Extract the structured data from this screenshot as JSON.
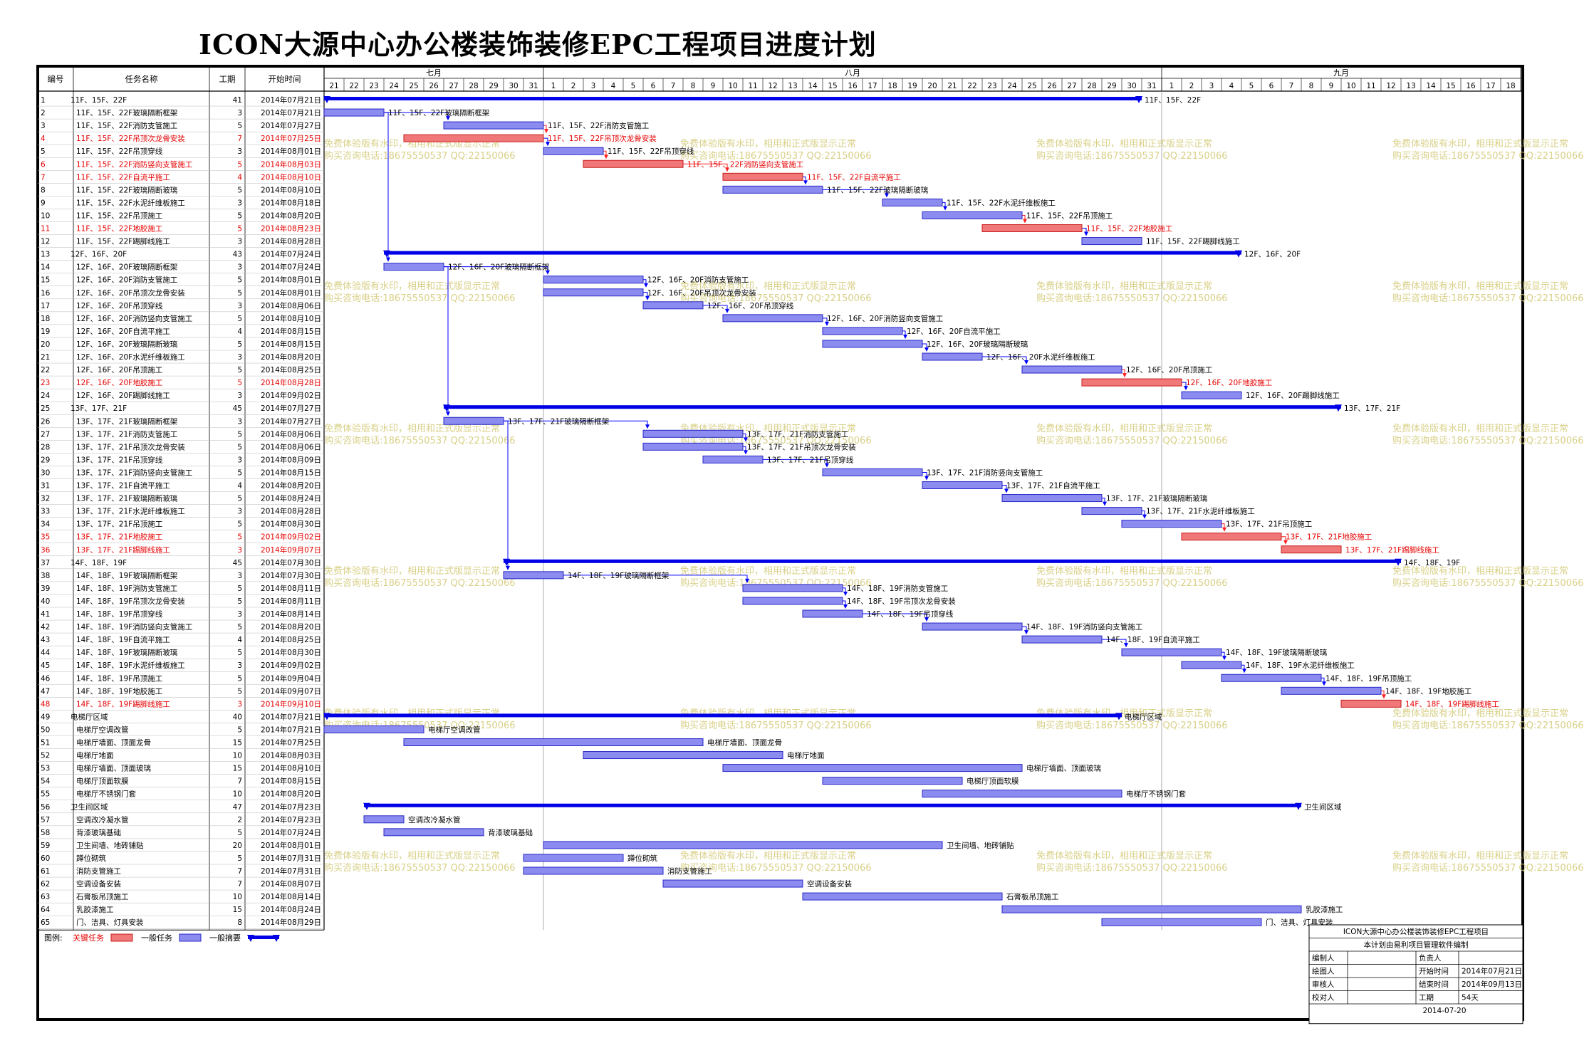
{
  "title": "ICON大源中心办公楼装饰装修EPC工程项目进度计划",
  "chart_data": {
    "type": "gantt",
    "columns": [
      "编号",
      "任务名称",
      "工期",
      "开始时间"
    ],
    "timeline": {
      "months": [
        {
          "label": "七月",
          "days": [
            "21",
            "22",
            "23",
            "24",
            "25",
            "26",
            "27",
            "28",
            "29",
            "30",
            "31"
          ]
        },
        {
          "label": "八月",
          "days": [
            "1",
            "2",
            "3",
            "4",
            "5",
            "6",
            "7",
            "8",
            "9",
            "10",
            "11",
            "12",
            "13",
            "14",
            "15",
            "16",
            "17",
            "18",
            "19",
            "20",
            "21",
            "22",
            "23",
            "24",
            "25",
            "26",
            "27",
            "28",
            "29",
            "30",
            "31"
          ]
        },
        {
          "label": "九月",
          "days": [
            "1",
            "2",
            "3",
            "4",
            "5",
            "6",
            "7",
            "8",
            "9",
            "10",
            "11",
            "12",
            "13",
            "14",
            "15",
            "16",
            "17",
            "18"
          ]
        }
      ]
    },
    "tasks": [
      {
        "id": "1",
        "name": "11F、15F、22F",
        "duration": 41,
        "start": "2014年07月21日",
        "type": "summary",
        "bar_label": "11F、15F、22F"
      },
      {
        "id": "2",
        "name": "11F、15F、22F玻璃隔断框架",
        "duration": 3,
        "start": "2014年07月21日",
        "type": "normal",
        "bar_label": "11F、15F、22F玻璃隔断框架"
      },
      {
        "id": "3",
        "name": "11F、15F、22F消防支管施工",
        "duration": 5,
        "start": "2014年07月27日",
        "type": "normal",
        "bar_label": "11F、15F、22F消防支管施工"
      },
      {
        "id": "4",
        "name": "11F、15F、22F吊顶次龙骨安装",
        "duration": 7,
        "start": "2014年07月25日",
        "type": "critical",
        "bar_label": "11F、15F、22F吊顶次龙骨安装"
      },
      {
        "id": "5",
        "name": "11F、15F、22F吊顶穿线",
        "duration": 3,
        "start": "2014年08月01日",
        "type": "normal",
        "bar_label": "11F、15F、22F吊顶穿线"
      },
      {
        "id": "6",
        "name": "11F、15F、22F消防竖向支管施工",
        "duration": 5,
        "start": "2014年08月03日",
        "type": "critical",
        "bar_label": "11F、15F、22F消防竖向支管施工"
      },
      {
        "id": "7",
        "name": "11F、15F、22F自流平施工",
        "duration": 4,
        "start": "2014年08月10日",
        "type": "critical",
        "bar_label": "11F、15F、22F自流平施工"
      },
      {
        "id": "8",
        "name": "11F、15F、22F玻璃隔断玻璃",
        "duration": 5,
        "start": "2014年08月10日",
        "type": "normal",
        "bar_label": "11F、15F、22F玻璃隔断玻璃"
      },
      {
        "id": "9",
        "name": "11F、15F、22F水泥纤维板施工",
        "duration": 3,
        "start": "2014年08月18日",
        "type": "normal",
        "bar_label": "11F、15F、22F水泥纤维板施工"
      },
      {
        "id": "10",
        "name": "11F、15F、22F吊顶施工",
        "duration": 5,
        "start": "2014年08月20日",
        "type": "normal",
        "bar_label": "11F、15F、22F吊顶施工"
      },
      {
        "id": "11",
        "name": "11F、15F、22F地胶施工",
        "duration": 5,
        "start": "2014年08月23日",
        "type": "critical",
        "bar_label": "11F、15F、22F地胶施工"
      },
      {
        "id": "12",
        "name": "11F、15F、22F踢脚线施工",
        "duration": 3,
        "start": "2014年08月28日",
        "type": "normal",
        "bar_label": "11F、15F、22F踢脚线施工"
      },
      {
        "id": "13",
        "name": "12F、16F、20F",
        "duration": 43,
        "start": "2014年07月24日",
        "type": "summary",
        "bar_label": "12F、16F、20F"
      },
      {
        "id": "14",
        "name": "12F、16F、20F玻璃隔断框架",
        "duration": 3,
        "start": "2014年07月24日",
        "type": "normal",
        "bar_label": "12F、16F、20F玻璃隔断框架"
      },
      {
        "id": "15",
        "name": "12F、16F、20F消防支管施工",
        "duration": 5,
        "start": "2014年08月01日",
        "type": "normal",
        "bar_label": "12F、16F、20F消防支管施工"
      },
      {
        "id": "16",
        "name": "12F、16F、20F吊顶次龙骨安装",
        "duration": 5,
        "start": "2014年08月01日",
        "type": "normal",
        "bar_label": "12F、16F、20F吊顶次龙骨安装"
      },
      {
        "id": "17",
        "name": "12F、16F、20F吊顶穿线",
        "duration": 3,
        "start": "2014年08月06日",
        "type": "normal",
        "bar_label": "12F、16F、20F吊顶穿线"
      },
      {
        "id": "18",
        "name": "12F、16F、20F消防竖向支管施工",
        "duration": 5,
        "start": "2014年08月10日",
        "type": "normal",
        "bar_label": "12F、16F、20F消防竖向支管施工"
      },
      {
        "id": "19",
        "name": "12F、16F、20F自流平施工",
        "duration": 4,
        "start": "2014年08月15日",
        "type": "normal",
        "bar_label": "12F、16F、20F自流平施工"
      },
      {
        "id": "20",
        "name": "12F、16F、20F玻璃隔断玻璃",
        "duration": 5,
        "start": "2014年08月15日",
        "type": "normal",
        "bar_label": "12F、16F、20F玻璃隔断玻璃"
      },
      {
        "id": "21",
        "name": "12F、16F、20F水泥纤维板施工",
        "duration": 3,
        "start": "2014年08月20日",
        "type": "normal",
        "bar_label": "12F、16F、20F水泥纤维板施工"
      },
      {
        "id": "22",
        "name": "12F、16F、20F吊顶施工",
        "duration": 5,
        "start": "2014年08月25日",
        "type": "normal",
        "bar_label": "12F、16F、20F吊顶施工"
      },
      {
        "id": "23",
        "name": "12F、16F、20F地胶施工",
        "duration": 5,
        "start": "2014年08月28日",
        "type": "critical",
        "bar_label": "12F、16F、20F地胶施工"
      },
      {
        "id": "24",
        "name": "12F、16F、20F踢脚线施工",
        "duration": 3,
        "start": "2014年09月02日",
        "type": "normal",
        "bar_label": "12F、16F、20F踢脚线施工"
      },
      {
        "id": "25",
        "name": "13F、17F、21F",
        "duration": 45,
        "start": "2014年07月27日",
        "type": "summary",
        "bar_label": "13F、17F、21F"
      },
      {
        "id": "26",
        "name": "13F、17F、21F玻璃隔断框架",
        "duration": 3,
        "start": "2014年07月27日",
        "type": "normal",
        "bar_label": "13F、17F、21F玻璃隔断框架"
      },
      {
        "id": "27",
        "name": "13F、17F、21F消防支管施工",
        "duration": 5,
        "start": "2014年08月06日",
        "type": "normal",
        "bar_label": "13F、17F、21F消防支管施工"
      },
      {
        "id": "28",
        "name": "13F、17F、21F吊顶次龙骨安装",
        "duration": 5,
        "start": "2014年08月06日",
        "type": "normal",
        "bar_label": "13F、17F、21F吊顶次龙骨安装"
      },
      {
        "id": "29",
        "name": "13F、17F、21F吊顶穿线",
        "duration": 3,
        "start": "2014年08月09日",
        "type": "normal",
        "bar_label": "13F、17F、21F吊顶穿线"
      },
      {
        "id": "30",
        "name": "13F、17F、21F消防竖向支管施工",
        "duration": 5,
        "start": "2014年08月15日",
        "type": "normal",
        "bar_label": "13F、17F、21F消防竖向支管施工"
      },
      {
        "id": "31",
        "name": "13F、17F、21F自流平施工",
        "duration": 4,
        "start": "2014年08月20日",
        "type": "normal",
        "bar_label": "13F、17F、21F自流平施工"
      },
      {
        "id": "32",
        "name": "13F、17F、21F玻璃隔断玻璃",
        "duration": 5,
        "start": "2014年08月24日",
        "type": "normal",
        "bar_label": "13F、17F、21F玻璃隔断玻璃"
      },
      {
        "id": "33",
        "name": "13F、17F、21F水泥纤维板施工",
        "duration": 3,
        "start": "2014年08月28日",
        "type": "normal",
        "bar_label": "13F、17F、21F水泥纤维板施工"
      },
      {
        "id": "34",
        "name": "13F、17F、21F吊顶施工",
        "duration": 5,
        "start": "2014年08月30日",
        "type": "normal",
        "bar_label": "13F、17F、21F吊顶施工"
      },
      {
        "id": "35",
        "name": "13F、17F、21F地胶施工",
        "duration": 5,
        "start": "2014年09月02日",
        "type": "critical",
        "bar_label": "13F、17F、21F地胶施工"
      },
      {
        "id": "36",
        "name": "13F、17F、21F踢脚线施工",
        "duration": 3,
        "start": "2014年09月07日",
        "type": "critical",
        "bar_label": "13F、17F、21F踢脚线施工"
      },
      {
        "id": "37",
        "name": "14F、18F、19F",
        "duration": 45,
        "start": "2014年07月30日",
        "type": "summary",
        "bar_label": "14F、18F、19F"
      },
      {
        "id": "38",
        "name": "14F、18F、19F玻璃隔断框架",
        "duration": 3,
        "start": "2014年07月30日",
        "type": "normal",
        "bar_label": "14F、18F、19F玻璃隔断框架"
      },
      {
        "id": "39",
        "name": "14F、18F、19F消防支管施工",
        "duration": 5,
        "start": "2014年08月11日",
        "type": "normal",
        "bar_label": "14F、18F、19F消防支管施工"
      },
      {
        "id": "40",
        "name": "14F、18F、19F吊顶次龙骨安装",
        "duration": 5,
        "start": "2014年08月11日",
        "type": "normal",
        "bar_label": "14F、18F、19F吊顶次龙骨安装"
      },
      {
        "id": "41",
        "name": "14F、18F、19F吊顶穿线",
        "duration": 3,
        "start": "2014年08月14日",
        "type": "normal",
        "bar_label": "14F、18F、19F吊顶穿线"
      },
      {
        "id": "42",
        "name": "14F、18F、19F消防竖向支管施工",
        "duration": 5,
        "start": "2014年08月20日",
        "type": "normal",
        "bar_label": "14F、18F、19F消防竖向支管施工"
      },
      {
        "id": "43",
        "name": "14F、18F、19F自流平施工",
        "duration": 4,
        "start": "2014年08月25日",
        "type": "normal",
        "bar_label": "14F、18F、19F自流平施工"
      },
      {
        "id": "44",
        "name": "14F、18F、19F玻璃隔断玻璃",
        "duration": 5,
        "start": "2014年08月30日",
        "type": "normal",
        "bar_label": "14F、18F、19F玻璃隔断玻璃"
      },
      {
        "id": "45",
        "name": "14F、18F、19F水泥纤维板施工",
        "duration": 3,
        "start": "2014年09月02日",
        "type": "normal",
        "bar_label": "14F、18F、19F水泥纤维板施工"
      },
      {
        "id": "46",
        "name": "14F、18F、19F吊顶施工",
        "duration": 5,
        "start": "2014年09月04日",
        "type": "normal",
        "bar_label": "14F、18F、19F吊顶施工"
      },
      {
        "id": "47",
        "name": "14F、18F、19F地胶施工",
        "duration": 5,
        "start": "2014年09月07日",
        "type": "normal",
        "bar_label": "14F、18F、19F地胶施工"
      },
      {
        "id": "48",
        "name": "14F、18F、19F踢脚线施工",
        "duration": 3,
        "start": "2014年09月10日",
        "type": "critical",
        "bar_label": "14F、18F、19F踢脚线施工"
      },
      {
        "id": "49",
        "name": "电梯厅区域",
        "duration": 40,
        "start": "2014年07月21日",
        "type": "summary",
        "bar_label": "电梯厅区域"
      },
      {
        "id": "50",
        "name": "电梯厅空调改管",
        "duration": 5,
        "start": "2014年07月21日",
        "type": "normal",
        "bar_label": "电梯厅空调改管"
      },
      {
        "id": "51",
        "name": "电梯厅墙面、顶面龙骨",
        "duration": 15,
        "start": "2014年07月25日",
        "type": "normal",
        "bar_label": "电梯厅墙面、顶面龙骨"
      },
      {
        "id": "52",
        "name": "电梯厅地面",
        "duration": 10,
        "start": "2014年08月03日",
        "type": "normal",
        "bar_label": "电梯厅地面"
      },
      {
        "id": "53",
        "name": "电梯厅墙面、顶面玻璃",
        "duration": 15,
        "start": "2014年08月10日",
        "type": "normal",
        "bar_label": "电梯厅墙面、顶面玻璃"
      },
      {
        "id": "54",
        "name": "电梯厅顶面软膜",
        "duration": 7,
        "start": "2014年08月15日",
        "type": "normal",
        "bar_label": "电梯厅顶面软膜"
      },
      {
        "id": "55",
        "name": "电梯厅不锈钢门套",
        "duration": 10,
        "start": "2014年08月20日",
        "type": "normal",
        "bar_label": "电梯厅不锈钢门套"
      },
      {
        "id": "56",
        "name": "卫生间区域",
        "duration": 47,
        "start": "2014年07月23日",
        "type": "summary",
        "bar_label": "卫生间区域"
      },
      {
        "id": "57",
        "name": "空调改冷凝水管",
        "duration": 2,
        "start": "2014年07月23日",
        "type": "normal",
        "bar_label": "空调改冷凝水管"
      },
      {
        "id": "58",
        "name": "背漆玻璃基础",
        "duration": 5,
        "start": "2014年07月24日",
        "type": "normal",
        "bar_label": "背漆玻璃基础"
      },
      {
        "id": "59",
        "name": "卫生间墙、地砖铺贴",
        "duration": 20,
        "start": "2014年08月01日",
        "type": "normal",
        "bar_label": "卫生间墙、地砖铺贴"
      },
      {
        "id": "60",
        "name": "蹲位砌筑",
        "duration": 5,
        "start": "2014年07月31日",
        "type": "normal",
        "bar_label": "蹲位砌筑"
      },
      {
        "id": "61",
        "name": "消防支管施工",
        "duration": 7,
        "start": "2014年07月31日",
        "type": "normal",
        "bar_label": "消防支管施工"
      },
      {
        "id": "62",
        "name": "空调设备安装",
        "duration": 7,
        "start": "2014年08月07日",
        "type": "normal",
        "bar_label": "空调设备安装"
      },
      {
        "id": "63",
        "name": "石膏板吊顶施工",
        "duration": 10,
        "start": "2014年08月14日",
        "type": "normal",
        "bar_label": "石膏板吊顶施工"
      },
      {
        "id": "64",
        "name": "乳胶漆施工",
        "duration": 15,
        "start": "2014年08月24日",
        "type": "normal",
        "bar_label": "乳胶漆施工"
      },
      {
        "id": "65",
        "name": "门、洁具、灯具安装",
        "duration": 8,
        "start": "2014年08月29日",
        "type": "normal",
        "bar_label": "门、洁具、灯具安装"
      }
    ],
    "legend": {
      "label": "图例:",
      "items": [
        {
          "label": "关键任务",
          "kind": "critical"
        },
        {
          "label": "一般任务",
          "kind": "normal"
        },
        {
          "label": "一般摘要",
          "kind": "summary"
        }
      ]
    },
    "colors": {
      "normal": "#8c8cf0",
      "normal_border": "#2828c8",
      "critical": "#f07878",
      "critical_border": "#c81e1e",
      "summary": "#0000e6",
      "critical_text": "#e60000",
      "link": "#0000ff",
      "watermark": "#d2c873"
    },
    "watermark": {
      "line1": "免费体验版有水印，相用和正式版显示正常",
      "line2": "购买咨询电话:18675550537 QQ:22150066"
    }
  },
  "info_box": {
    "title": "ICON大源中心办公楼装饰装修EPC工程项目",
    "subtitle": "本计划由易利项目管理软件编制",
    "rows": [
      [
        "编制人",
        "",
        "负责人",
        ""
      ],
      [
        "绘图人",
        "",
        "开始时间",
        "2014年07月21日"
      ],
      [
        "审核人",
        "",
        "结束时间",
        "2014年09月13日"
      ],
      [
        "校对人",
        "",
        "工期",
        "54天"
      ]
    ],
    "date": "2014-07-20"
  }
}
